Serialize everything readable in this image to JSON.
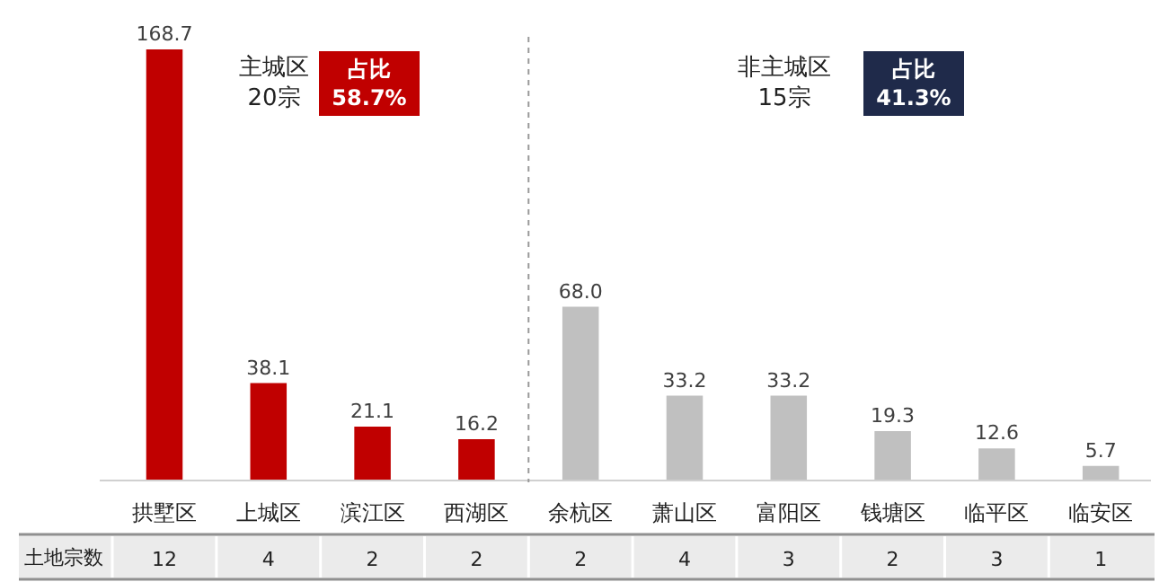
{
  "chart_data": {
    "type": "bar",
    "categories": [
      "拱墅区",
      "上城区",
      "滨江区",
      "西湖区",
      "余杭区",
      "萧山区",
      "富阳区",
      "钱塘区",
      "临平区",
      "临安区"
    ],
    "values": [
      168.7,
      38.1,
      21.1,
      16.2,
      68.0,
      33.2,
      33.2,
      19.3,
      12.6,
      5.7
    ],
    "value_labels": [
      "168.7",
      "38.1",
      "21.1",
      "16.2",
      "68.0",
      "33.2",
      "33.2",
      "19.3",
      "12.6",
      "5.7"
    ],
    "colors": [
      "#c00000",
      "#c00000",
      "#c00000",
      "#c00000",
      "#c0c0c0",
      "#c0c0c0",
      "#c0c0c0",
      "#c0c0c0",
      "#c0c0c0",
      "#c0c0c0"
    ],
    "relative": false,
    "annotations": [
      "主城区\n20宗",
      "占比\n58.7%",
      "非主城区\n15宗",
      "占比\n41.3%",
      "土地宗数",
      "12",
      "4",
      "2",
      "2",
      "2",
      "4",
      "3",
      "2",
      "3",
      "1"
    ],
    "grid": false
  }
}
